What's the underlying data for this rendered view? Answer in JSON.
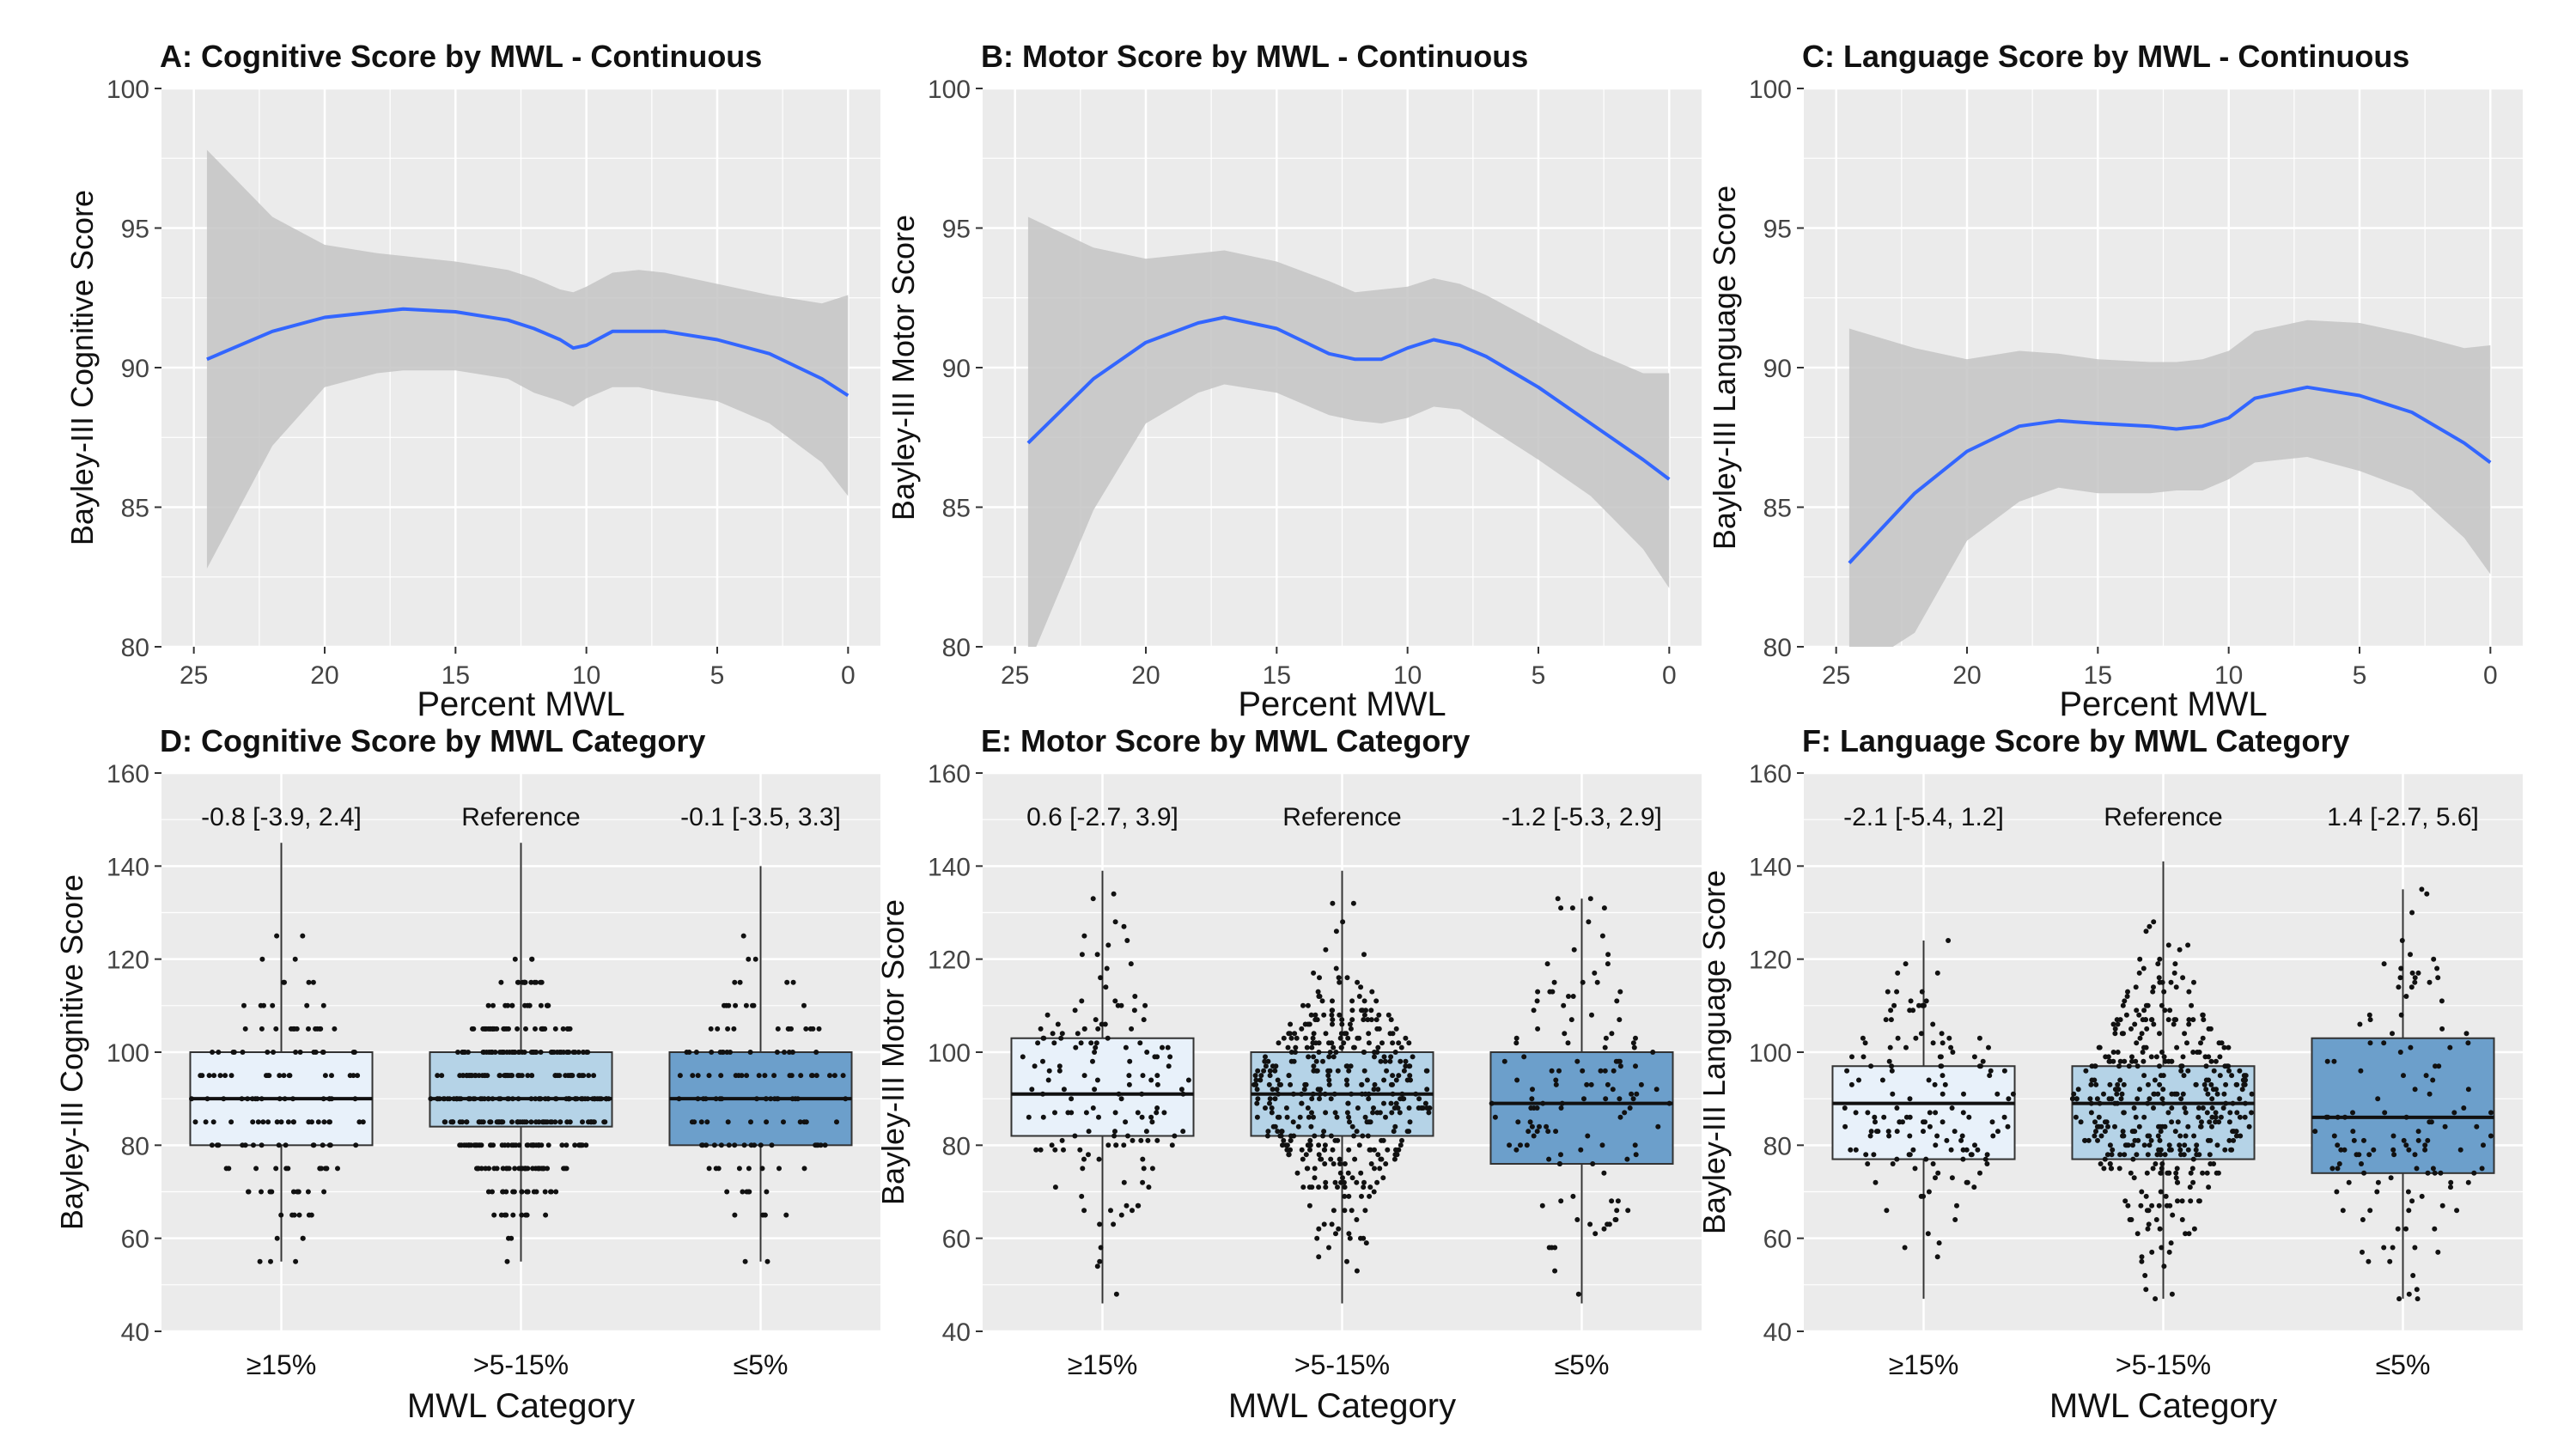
{
  "figure": {
    "panel_bg_color": "#ebebeb",
    "grid_color": "#ffffff",
    "smooth_line_color": "#3366ff",
    "ribbon_color": "#c4c4c4",
    "box_fill_colors": [
      "#e8f1fa",
      "#b5d3e7",
      "#6c9fcb"
    ]
  },
  "chart_data": [
    {
      "type": "line",
      "title": "A: Cognitive Score by MWL  - Continuous",
      "xlabel": "Percent MWL",
      "ylabel": "Bayley-III Cognitive Score",
      "x_reversed": true,
      "xlim": [
        25,
        0
      ],
      "ylim": [
        80,
        100
      ],
      "x_ticks": [
        "25",
        "20",
        "15",
        "10",
        "5",
        "0"
      ],
      "y_ticks": [
        "80",
        "85",
        "90",
        "95",
        "100"
      ],
      "grid": true,
      "series": [
        {
          "x": [
            24.5,
            22,
            20,
            18,
            17,
            15,
            13,
            12,
            11,
            10.5,
            10,
            9,
            8,
            7,
            5,
            3,
            1,
            0
          ],
          "y": [
            90.3,
            91.3,
            91.8,
            92.0,
            92.1,
            92.0,
            91.7,
            91.4,
            91.0,
            90.7,
            90.8,
            91.3,
            91.3,
            91.3,
            91.0,
            90.5,
            89.6,
            89.0
          ]
        }
      ],
      "ribbon": {
        "x": [
          24.5,
          22,
          20,
          18,
          17,
          15,
          13,
          12,
          11,
          10.5,
          10,
          9,
          8,
          7,
          5,
          3,
          1,
          0
        ],
        "upper": [
          97.8,
          95.4,
          94.4,
          94.1,
          94.0,
          93.8,
          93.5,
          93.2,
          92.8,
          92.7,
          92.9,
          93.4,
          93.5,
          93.4,
          93.0,
          92.6,
          92.3,
          92.6
        ],
        "lower": [
          82.8,
          87.2,
          89.3,
          89.8,
          89.9,
          89.9,
          89.6,
          89.1,
          88.8,
          88.6,
          88.9,
          89.3,
          89.3,
          89.1,
          88.8,
          88.0,
          86.6,
          85.4
        ]
      }
    },
    {
      "type": "line",
      "title": "B: Motor Score by MWL  - Continuous",
      "xlabel": "Percent MWL",
      "ylabel": "Bayley-III Motor Score",
      "x_reversed": true,
      "xlim": [
        25,
        0
      ],
      "ylim": [
        80,
        100
      ],
      "x_ticks": [
        "25",
        "20",
        "15",
        "10",
        "5",
        "0"
      ],
      "y_ticks": [
        "80",
        "85",
        "90",
        "95",
        "100"
      ],
      "grid": true,
      "series": [
        {
          "x": [
            24.5,
            22,
            20,
            18,
            17,
            15,
            13,
            12,
            11,
            10,
            9,
            8,
            7,
            5,
            3,
            1,
            0
          ],
          "y": [
            87.3,
            89.6,
            90.9,
            91.6,
            91.8,
            91.4,
            90.5,
            90.3,
            90.3,
            90.7,
            91.0,
            90.8,
            90.4,
            89.3,
            88.0,
            86.7,
            86.0
          ]
        }
      ],
      "ribbon": {
        "x": [
          24.5,
          22,
          20,
          18,
          17,
          15,
          13,
          12,
          11,
          10,
          9,
          8,
          7,
          5,
          3,
          1,
          0
        ],
        "upper": [
          95.4,
          94.3,
          93.9,
          94.1,
          94.2,
          93.8,
          93.1,
          92.7,
          92.8,
          92.9,
          93.2,
          93.0,
          92.6,
          91.6,
          90.6,
          89.8,
          89.8
        ],
        "lower": [
          79.3,
          84.9,
          88.0,
          89.1,
          89.4,
          89.1,
          88.3,
          88.1,
          88.0,
          88.2,
          88.6,
          88.5,
          87.9,
          86.7,
          85.4,
          83.5,
          82.1
        ]
      }
    },
    {
      "type": "line",
      "title": "C: Language Score by MWL - Continuous",
      "xlabel": "Percent MWL",
      "ylabel": "Bayley-III Language Score",
      "x_reversed": true,
      "xlim": [
        25,
        0
      ],
      "ylim": [
        80,
        100
      ],
      "x_ticks": [
        "25",
        "20",
        "15",
        "10",
        "5",
        "0"
      ],
      "y_ticks": [
        "80",
        "85",
        "90",
        "95",
        "100"
      ],
      "grid": true,
      "series": [
        {
          "x": [
            24.5,
            22,
            20,
            18,
            16.5,
            15,
            13,
            12,
            11,
            10,
            9,
            7,
            5,
            3,
            1,
            0
          ],
          "y": [
            83.0,
            85.5,
            87.0,
            87.9,
            88.1,
            88.0,
            87.9,
            87.8,
            87.9,
            88.2,
            88.9,
            89.3,
            89.0,
            88.4,
            87.3,
            86.6
          ]
        }
      ],
      "ribbon": {
        "x": [
          24.5,
          22,
          20,
          18,
          16.5,
          15,
          13,
          12,
          11,
          10,
          9,
          7,
          5,
          3,
          1,
          0
        ],
        "upper": [
          91.4,
          90.7,
          90.3,
          90.6,
          90.5,
          90.3,
          90.2,
          90.2,
          90.3,
          90.6,
          91.3,
          91.7,
          91.6,
          91.2,
          90.7,
          90.8
        ],
        "lower": [
          79.0,
          80.5,
          83.8,
          85.2,
          85.7,
          85.5,
          85.5,
          85.6,
          85.6,
          86.0,
          86.6,
          86.8,
          86.3,
          85.6,
          83.9,
          82.6
        ]
      }
    },
    {
      "type": "box",
      "title": "D: Cognitive Score by MWL Category",
      "xlabel": "MWL Category",
      "ylabel": "Bayley-III Cognitive Score",
      "ylim": [
        40,
        160
      ],
      "y_ticks": [
        "40",
        "60",
        "80",
        "100",
        "120",
        "140",
        "160"
      ],
      "categories": [
        "≥15%",
        ">5-15%",
        "≤5%"
      ],
      "annotations": [
        "-0.8 [-3.9, 2.4]",
        "Reference",
        "-0.1 [-3.5, 3.3]"
      ],
      "boxes": [
        {
          "q1": 80,
          "median": 90,
          "q3": 100,
          "min": 55,
          "max": 145,
          "n": 150
        },
        {
          "q1": 84,
          "median": 90,
          "q3": 100,
          "min": 55,
          "max": 145,
          "n": 420
        },
        {
          "q1": 80,
          "median": 90,
          "q3": 100,
          "min": 55,
          "max": 140,
          "n": 130
        }
      ]
    },
    {
      "type": "box",
      "title": "E: Motor Score by MWL Category",
      "xlabel": "MWL Category",
      "ylabel": "Bayley-III Motor Score",
      "ylim": [
        40,
        160
      ],
      "y_ticks": [
        "40",
        "60",
        "80",
        "100",
        "120",
        "140",
        "160"
      ],
      "categories": [
        "≥15%",
        ">5-15%",
        "≤5%"
      ],
      "annotations": [
        "0.6 [-2.7, 3.9]",
        "Reference",
        "-1.2 [-5.3, 2.9]"
      ],
      "boxes": [
        {
          "q1": 82,
          "median": 91,
          "q3": 103,
          "min": 46,
          "max": 139,
          "n": 150
        },
        {
          "q1": 82,
          "median": 91,
          "q3": 100,
          "min": 46,
          "max": 139,
          "n": 420
        },
        {
          "q1": 76,
          "median": 89,
          "q3": 100,
          "min": 46,
          "max": 133,
          "n": 130
        }
      ]
    },
    {
      "type": "box",
      "title": "F: Language Score by MWL Category",
      "xlabel": "MWL Category",
      "ylabel": "Bayley-III Language Score",
      "ylim": [
        40,
        160
      ],
      "y_ticks": [
        "40",
        "60",
        "80",
        "100",
        "120",
        "140",
        "160"
      ],
      "categories": [
        "≥15%",
        ">5-15%",
        "≤5%"
      ],
      "annotations": [
        "-2.1 [-5.4, 1.2]",
        "Reference",
        "1.4 [-2.7, 5.6]"
      ],
      "boxes": [
        {
          "q1": 77,
          "median": 89,
          "q3": 97,
          "min": 47,
          "max": 124,
          "n": 150
        },
        {
          "q1": 77,
          "median": 89,
          "q3": 97,
          "min": 47,
          "max": 141,
          "n": 420
        },
        {
          "q1": 74,
          "median": 86,
          "q3": 103,
          "min": 47,
          "max": 135,
          "n": 130
        }
      ]
    }
  ]
}
